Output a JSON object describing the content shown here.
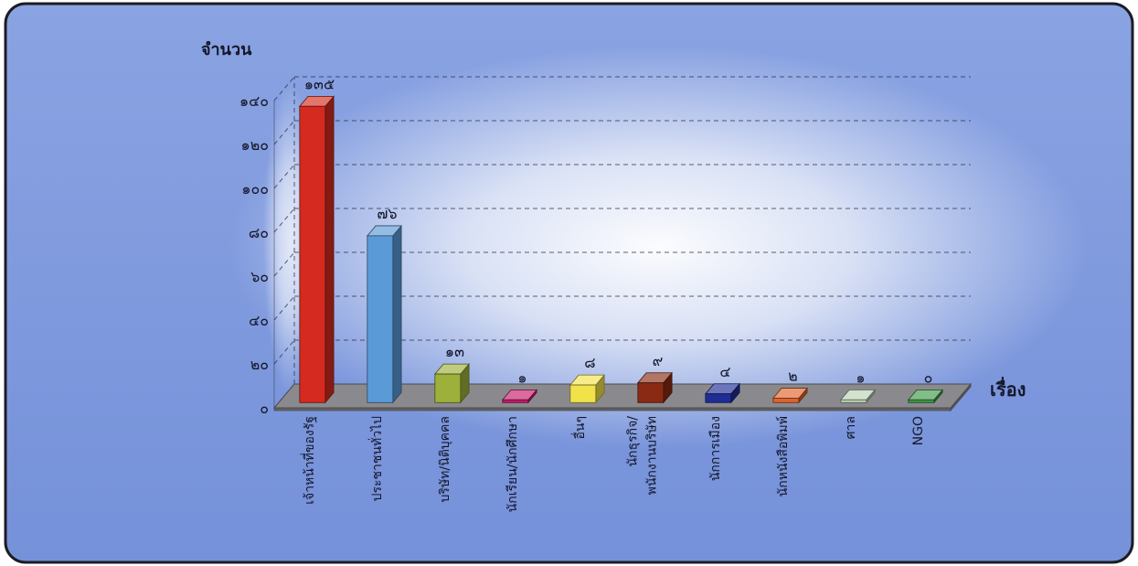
{
  "chart_data": {
    "type": "bar",
    "three_d": true,
    "categories": [
      "เจ้าหน้าที่ของรัฐ",
      "ประชาชนทั่วไป",
      "บริษัท/นิติบุคคล",
      "นักเรียน/นักศึกษา",
      "อื่นๆ",
      "นักธุรกิจ/\nพนักงานบริษัท",
      "นักการเมือง",
      "นักหนังสือพิมพ์",
      "ศาล",
      "NGO"
    ],
    "values": [
      135,
      76,
      13,
      1,
      8,
      9,
      4,
      2,
      1,
      0
    ],
    "value_labels": [
      "๑๓๕",
      "๗๖",
      "๑๓",
      "๑",
      "๘",
      "๙",
      "๔",
      "๒",
      "๑",
      "๐"
    ],
    "colors": [
      "#d42a1f",
      "#5a9ad6",
      "#9cb03a",
      "#c8196a",
      "#f1e24a",
      "#8a2a14",
      "#1e2c96",
      "#e0632a",
      "#b9d3b5",
      "#3f9a48"
    ],
    "ylabel": "จำนวน",
    "xlabel": "เรื่อง",
    "ylim": [
      0,
      140
    ],
    "y_ticks": [
      0,
      20,
      40,
      60,
      80,
      100,
      120,
      140
    ],
    "y_tick_labels": [
      "๐",
      "๒๐",
      "๔๐",
      "๖๐",
      "๘๐",
      "๑๐๐",
      "๑๒๐",
      "๑๔๐"
    ],
    "grid": true,
    "legend": false
  },
  "theme": {
    "panel_top": "#8aa3e2",
    "panel_bottom": "#7591d9",
    "border": "#1c1c22",
    "floor": "#8a8a8e",
    "text": "#15172b"
  }
}
